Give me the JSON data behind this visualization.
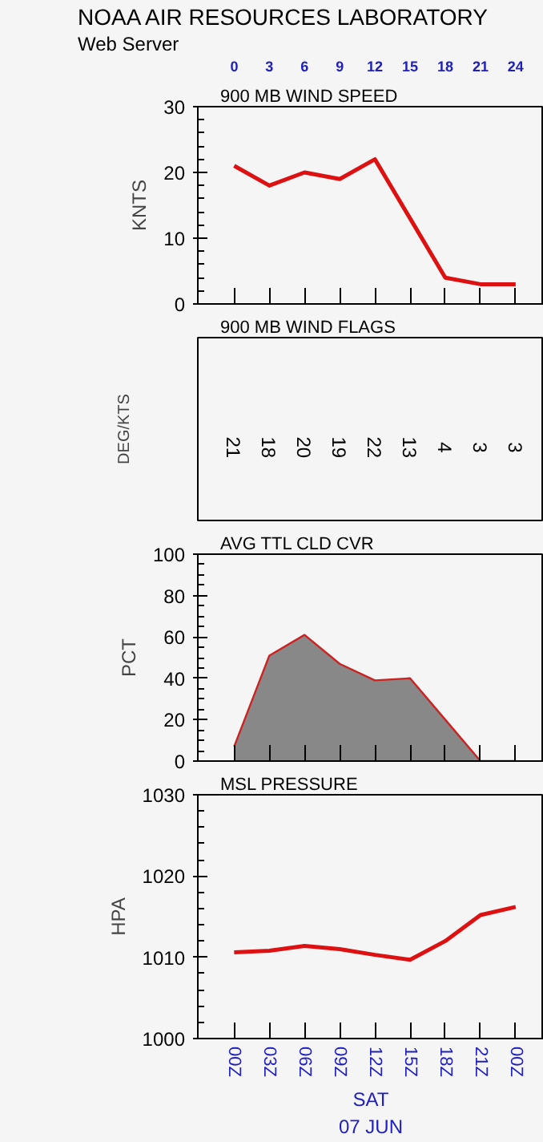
{
  "chart_data": [
    {
      "type": "line",
      "title": "NOAA AIR RESOURCES LABORATORY",
      "subtitle": "Web Server",
      "annotations": [
        "900 MB  WIND SPEED"
      ],
      "ylabel": "KNTS",
      "x": [
        0,
        3,
        6,
        9,
        12,
        15,
        18,
        21,
        24
      ],
      "series": [
        {
          "color": "#dd1111",
          "values": [
            21,
            18,
            20,
            19,
            22,
            13,
            4,
            3,
            3
          ]
        }
      ],
      "xlim": [
        -3.1,
        26.4
      ],
      "xticks": [
        0,
        3,
        6,
        9,
        12,
        15,
        18,
        21,
        24
      ],
      "ylim": [
        0,
        30
      ],
      "yticks": [
        0,
        {
          "value": 2,
          "label": null
        },
        {
          "value": 4,
          "label": null
        },
        {
          "value": 6,
          "label": null
        },
        {
          "value": 8,
          "label": null
        },
        10,
        {
          "value": 12,
          "label": null
        },
        {
          "value": 14,
          "label": null
        },
        {
          "value": 16,
          "label": null
        },
        {
          "value": 18,
          "label": null
        },
        20,
        {
          "value": 22,
          "label": null
        },
        {
          "value": 24,
          "label": null
        },
        {
          "value": 26,
          "label": null
        },
        {
          "value": 28,
          "label": null
        },
        30
      ]
    },
    {
      "type": "other",
      "title": "900 MB  WIND FLAGS",
      "ylabel": "DEG/KTS",
      "categories": [
        null,
        null,
        null,
        null,
        null,
        null,
        null,
        null,
        null
      ],
      "value_labels": [
        "21",
        "18",
        "20",
        "19",
        "22",
        "13",
        "4",
        "3",
        "3"
      ]
    },
    {
      "type": "area",
      "title": "AVG TTL CLD CVR",
      "ylabel": "PCT",
      "categories": [
        null,
        null,
        null,
        null,
        null,
        null,
        null,
        null,
        null
      ],
      "series": [
        {
          "color": "#888888",
          "values": [
            7,
            51,
            61,
            47,
            39,
            40,
            20,
            0,
            0
          ]
        }
      ],
      "ylim": [
        0,
        100
      ],
      "yticks": [
        0,
        {
          "value": 5,
          "label": null
        },
        {
          "value": 10,
          "label": null
        },
        {
          "value": 15,
          "label": null
        },
        20,
        {
          "value": 25,
          "label": null
        },
        {
          "value": 30,
          "label": null
        },
        {
          "value": 35,
          "label": null
        },
        40,
        {
          "value": 45,
          "label": null
        },
        {
          "value": 50,
          "label": null
        },
        {
          "value": 55,
          "label": null
        },
        60,
        {
          "value": 65,
          "label": null
        },
        {
          "value": 70,
          "label": null
        },
        {
          "value": 75,
          "label": null
        },
        80,
        {
          "value": 85,
          "label": null
        },
        {
          "value": 90,
          "label": null
        },
        {
          "value": 95,
          "label": null
        },
        100
      ]
    },
    {
      "type": "line",
      "title": "MSL PRESSURE",
      "ylabel": "HPA",
      "xlabel": "SAT\n07 JUN",
      "categories": [
        "00Z",
        "03Z",
        "06Z",
        "09Z",
        "12Z",
        "15Z",
        "18Z",
        "21Z",
        "00Z"
      ],
      "series": [
        {
          "color": "#dd1111",
          "values": [
            1010.6,
            1010.8,
            1011.4,
            1011.0,
            1010.3,
            1009.7,
            1012.0,
            1015.2,
            1016.2
          ]
        }
      ],
      "ylim": [
        1000,
        1030
      ],
      "yticks": [
        1000,
        {
          "value": 1002,
          "label": null
        },
        {
          "value": 1004,
          "label": null
        },
        {
          "value": 1006,
          "label": null
        },
        {
          "value": 1008,
          "label": null
        },
        1010,
        {
          "value": 1012,
          "label": null
        },
        {
          "value": 1014,
          "label": null
        },
        {
          "value": 1016,
          "label": null
        },
        {
          "value": 1018,
          "label": null
        },
        1020,
        {
          "value": 1022,
          "label": null
        },
        {
          "value": 1024,
          "label": null
        },
        {
          "value": 1026,
          "label": null
        },
        {
          "value": 1028,
          "label": null
        },
        1030
      ]
    }
  ]
}
